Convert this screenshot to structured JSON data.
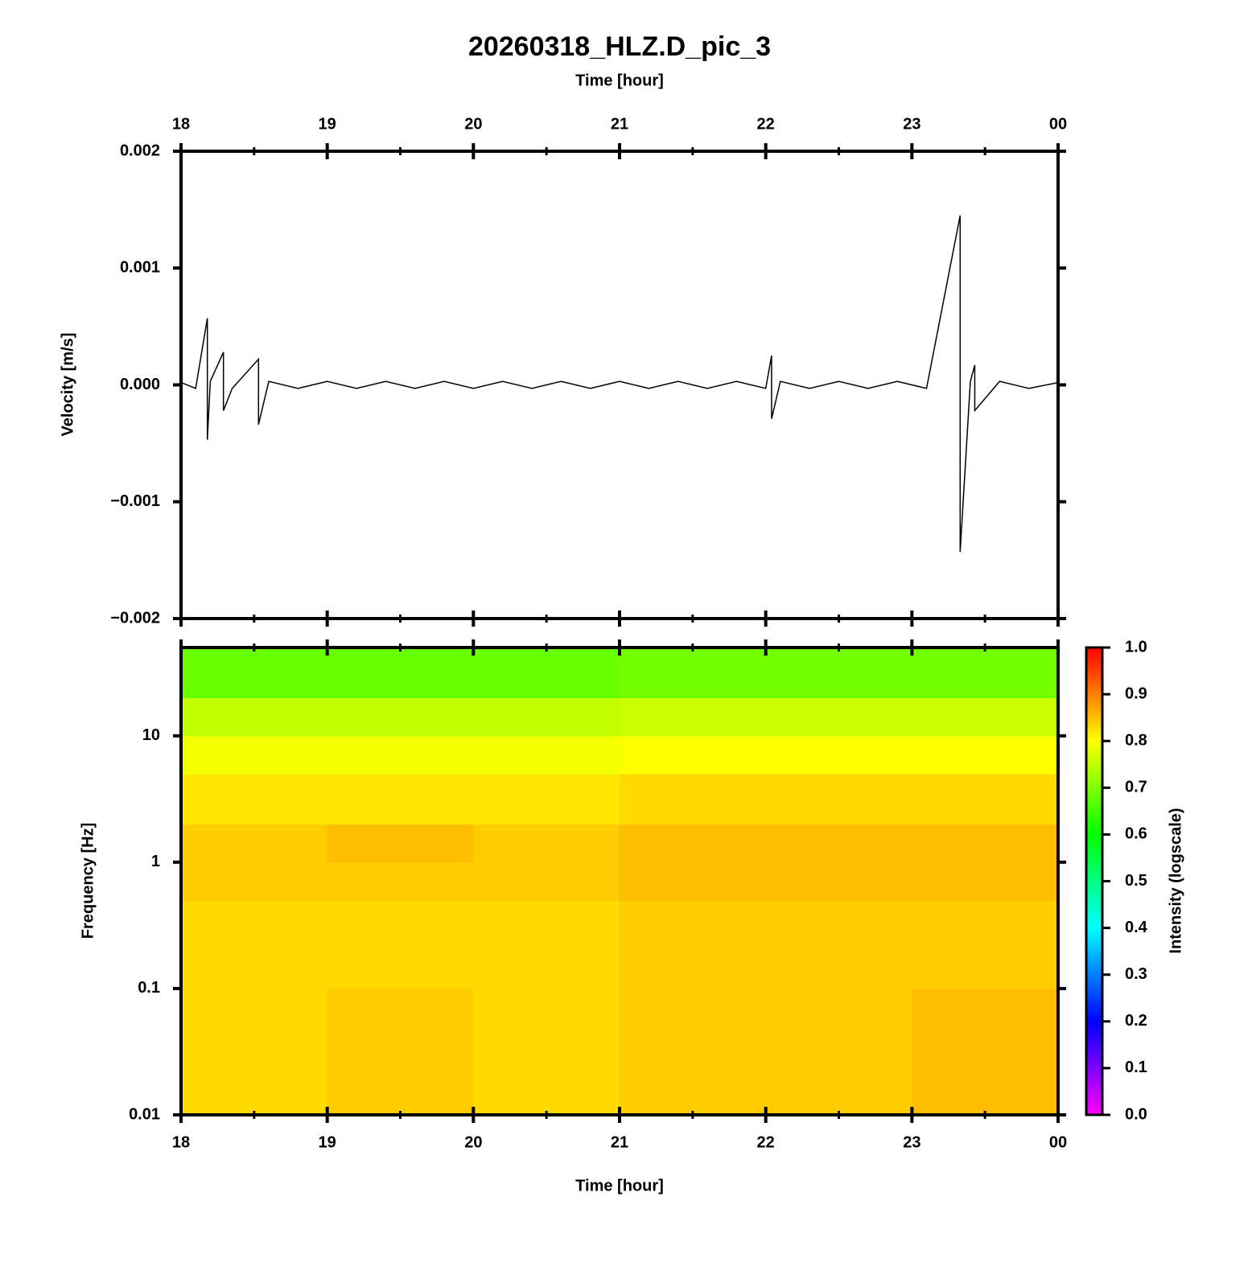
{
  "chart_data": [
    {
      "type": "line",
      "title": "20260318_HLZ.D_pic_3",
      "xlabel": "Time [hour]",
      "ylabel": "Velocity [m/s]",
      "xlim": [
        18,
        24
      ],
      "xticks": [
        18,
        19,
        20,
        21,
        22,
        23,
        {
          "value": 24,
          "label": "00"
        }
      ],
      "xminorticks": [
        18.5,
        19.5,
        20.5,
        21.5,
        22.5,
        23.5
      ],
      "ylim": [
        -0.002,
        0.002
      ],
      "yticks": [
        {
          "value": -0.002,
          "label": "−0.002"
        },
        {
          "value": -0.001,
          "label": "−0.001"
        },
        {
          "value": 0,
          "label": "0.000"
        },
        0.001,
        0.002
      ],
      "color": "#000000",
      "x": [
        18.0,
        18.1,
        18.18,
        18.18,
        18.2,
        18.29,
        18.29,
        18.35,
        18.53,
        18.53,
        18.6,
        18.8,
        19.0,
        19.2,
        19.4,
        19.6,
        19.8,
        20.0,
        20.2,
        20.4,
        20.6,
        20.8,
        21.0,
        21.2,
        21.4,
        21.6,
        21.8,
        22.0,
        22.04,
        22.04,
        22.1,
        22.3,
        22.5,
        22.7,
        22.9,
        23.1,
        23.33,
        23.33,
        23.4,
        23.43,
        23.43,
        23.6,
        23.8,
        24.0
      ],
      "values": [
        2e-05,
        -3e-05,
        0.00057,
        -0.00047,
        3e-05,
        0.00028,
        -0.00022,
        -3e-05,
        0.00022,
        -0.00034,
        3e-05,
        -3e-05,
        3e-05,
        -3e-05,
        3e-05,
        -3e-05,
        3e-05,
        -3e-05,
        3e-05,
        -3e-05,
        3e-05,
        -3e-05,
        3e-05,
        -3e-05,
        3e-05,
        -3e-05,
        3e-05,
        -3e-05,
        0.00025,
        -0.00029,
        3e-05,
        -3e-05,
        3e-05,
        -3e-05,
        3e-05,
        -3e-05,
        0.00145,
        -0.00143,
        3e-05,
        0.00017,
        -0.00022,
        3e-05,
        -3e-05,
        2e-05
      ]
    },
    {
      "type": "heatmap",
      "xlabel": "Time [hour]",
      "ylabel": "Frequency [Hz]",
      "xlim": [
        18,
        24
      ],
      "xticks": [
        18,
        19,
        20,
        21,
        22,
        23,
        {
          "value": 24,
          "label": "00"
        }
      ],
      "xminorticks": [
        18.5,
        19.5,
        20.5,
        21.5,
        22.5,
        23.5
      ],
      "ylim": [
        0.01,
        50
      ],
      "log_y": true,
      "yticks": [
        0.01,
        0.1,
        1,
        10
      ],
      "x_edges": [
        18,
        19,
        20,
        21,
        22,
        23,
        24
      ],
      "y_edges": [
        0.01,
        0.1,
        0.5,
        1,
        2,
        5,
        10,
        20,
        50
      ],
      "z": [
        [
          0.83,
          0.84,
          0.83,
          0.84,
          0.84,
          0.85
        ],
        [
          0.83,
          0.83,
          0.83,
          0.84,
          0.84,
          0.84
        ],
        [
          0.84,
          0.84,
          0.84,
          0.85,
          0.85,
          0.85
        ],
        [
          0.84,
          0.85,
          0.84,
          0.85,
          0.85,
          0.85
        ],
        [
          0.82,
          0.82,
          0.82,
          0.83,
          0.83,
          0.83
        ],
        [
          0.79,
          0.79,
          0.79,
          0.8,
          0.8,
          0.8
        ],
        [
          0.75,
          0.75,
          0.75,
          0.76,
          0.76,
          0.76
        ],
        [
          0.68,
          0.68,
          0.68,
          0.69,
          0.69,
          0.69
        ]
      ],
      "colorbar": {
        "label": "Intensity (logscale)",
        "lim": [
          0,
          1
        ],
        "ticks": [
          {
            "value": 0,
            "label": "0.0"
          },
          0.1,
          0.2,
          0.3,
          0.4,
          0.5,
          0.6,
          0.7,
          0.8,
          0.9,
          {
            "value": 1,
            "label": "1.0"
          }
        ],
        "colors": [
          "#ff00ff",
          "#0000ff",
          "#00ffff",
          "#00ff00",
          "#ffff00",
          "#ff0000"
        ]
      }
    }
  ]
}
